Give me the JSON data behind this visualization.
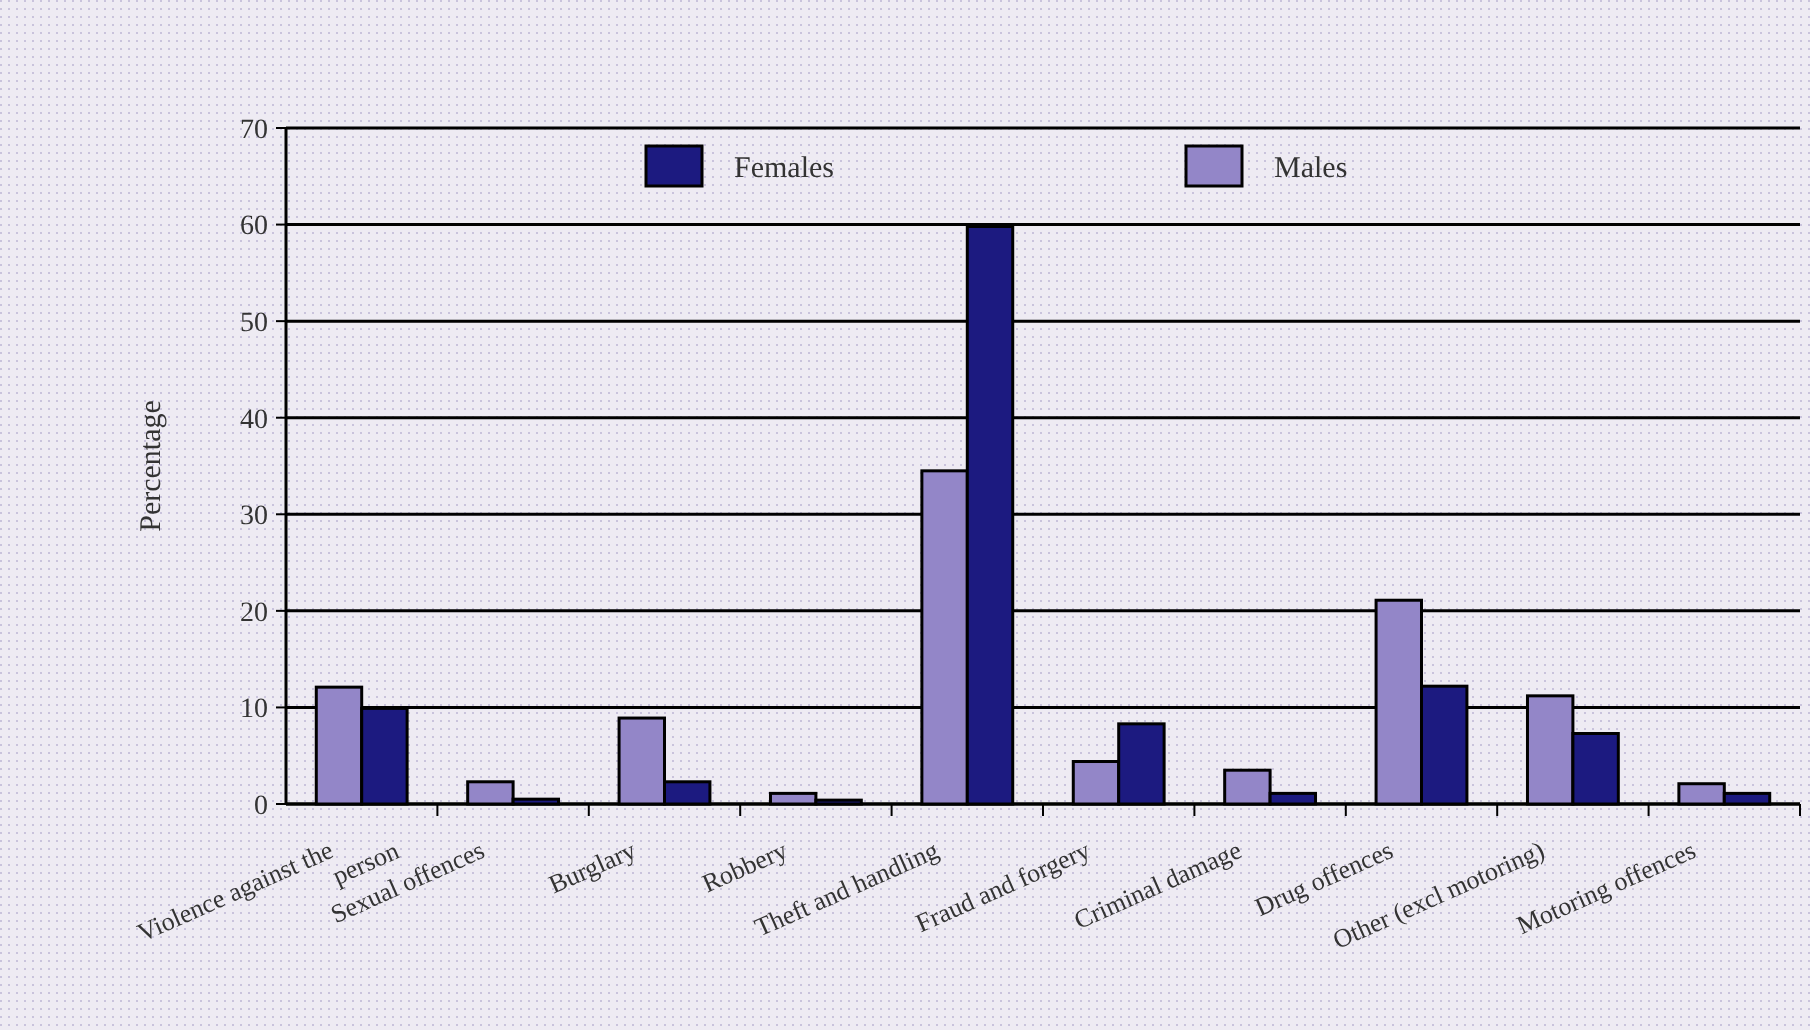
{
  "chart_data": {
    "type": "bar",
    "ylabel": "Percentage",
    "categories": [
      "Violence against the person",
      "Sexual offences",
      "Burglary",
      "Robbery",
      "Theft and handling",
      "Fraud and forgery",
      "Criminal damage",
      "Drug offences",
      "Other (excl motoring)",
      "Motoring offences"
    ],
    "series": [
      {
        "name": "Males",
        "color": "#9386c8",
        "values": [
          12.1,
          2.3,
          8.9,
          1.1,
          34.5,
          4.4,
          3.5,
          21.1,
          11.2,
          2.1
        ]
      },
      {
        "name": "Females",
        "color": "#1c1a80",
        "values": [
          9.9,
          0.5,
          2.3,
          0.4,
          59.8,
          8.3,
          1.1,
          12.2,
          7.3,
          1.1
        ]
      }
    ],
    "ylim": [
      0,
      70
    ],
    "yticks": [
      0,
      10,
      20,
      30,
      40,
      50,
      60,
      70
    ],
    "grid": "y",
    "legend": "top"
  }
}
